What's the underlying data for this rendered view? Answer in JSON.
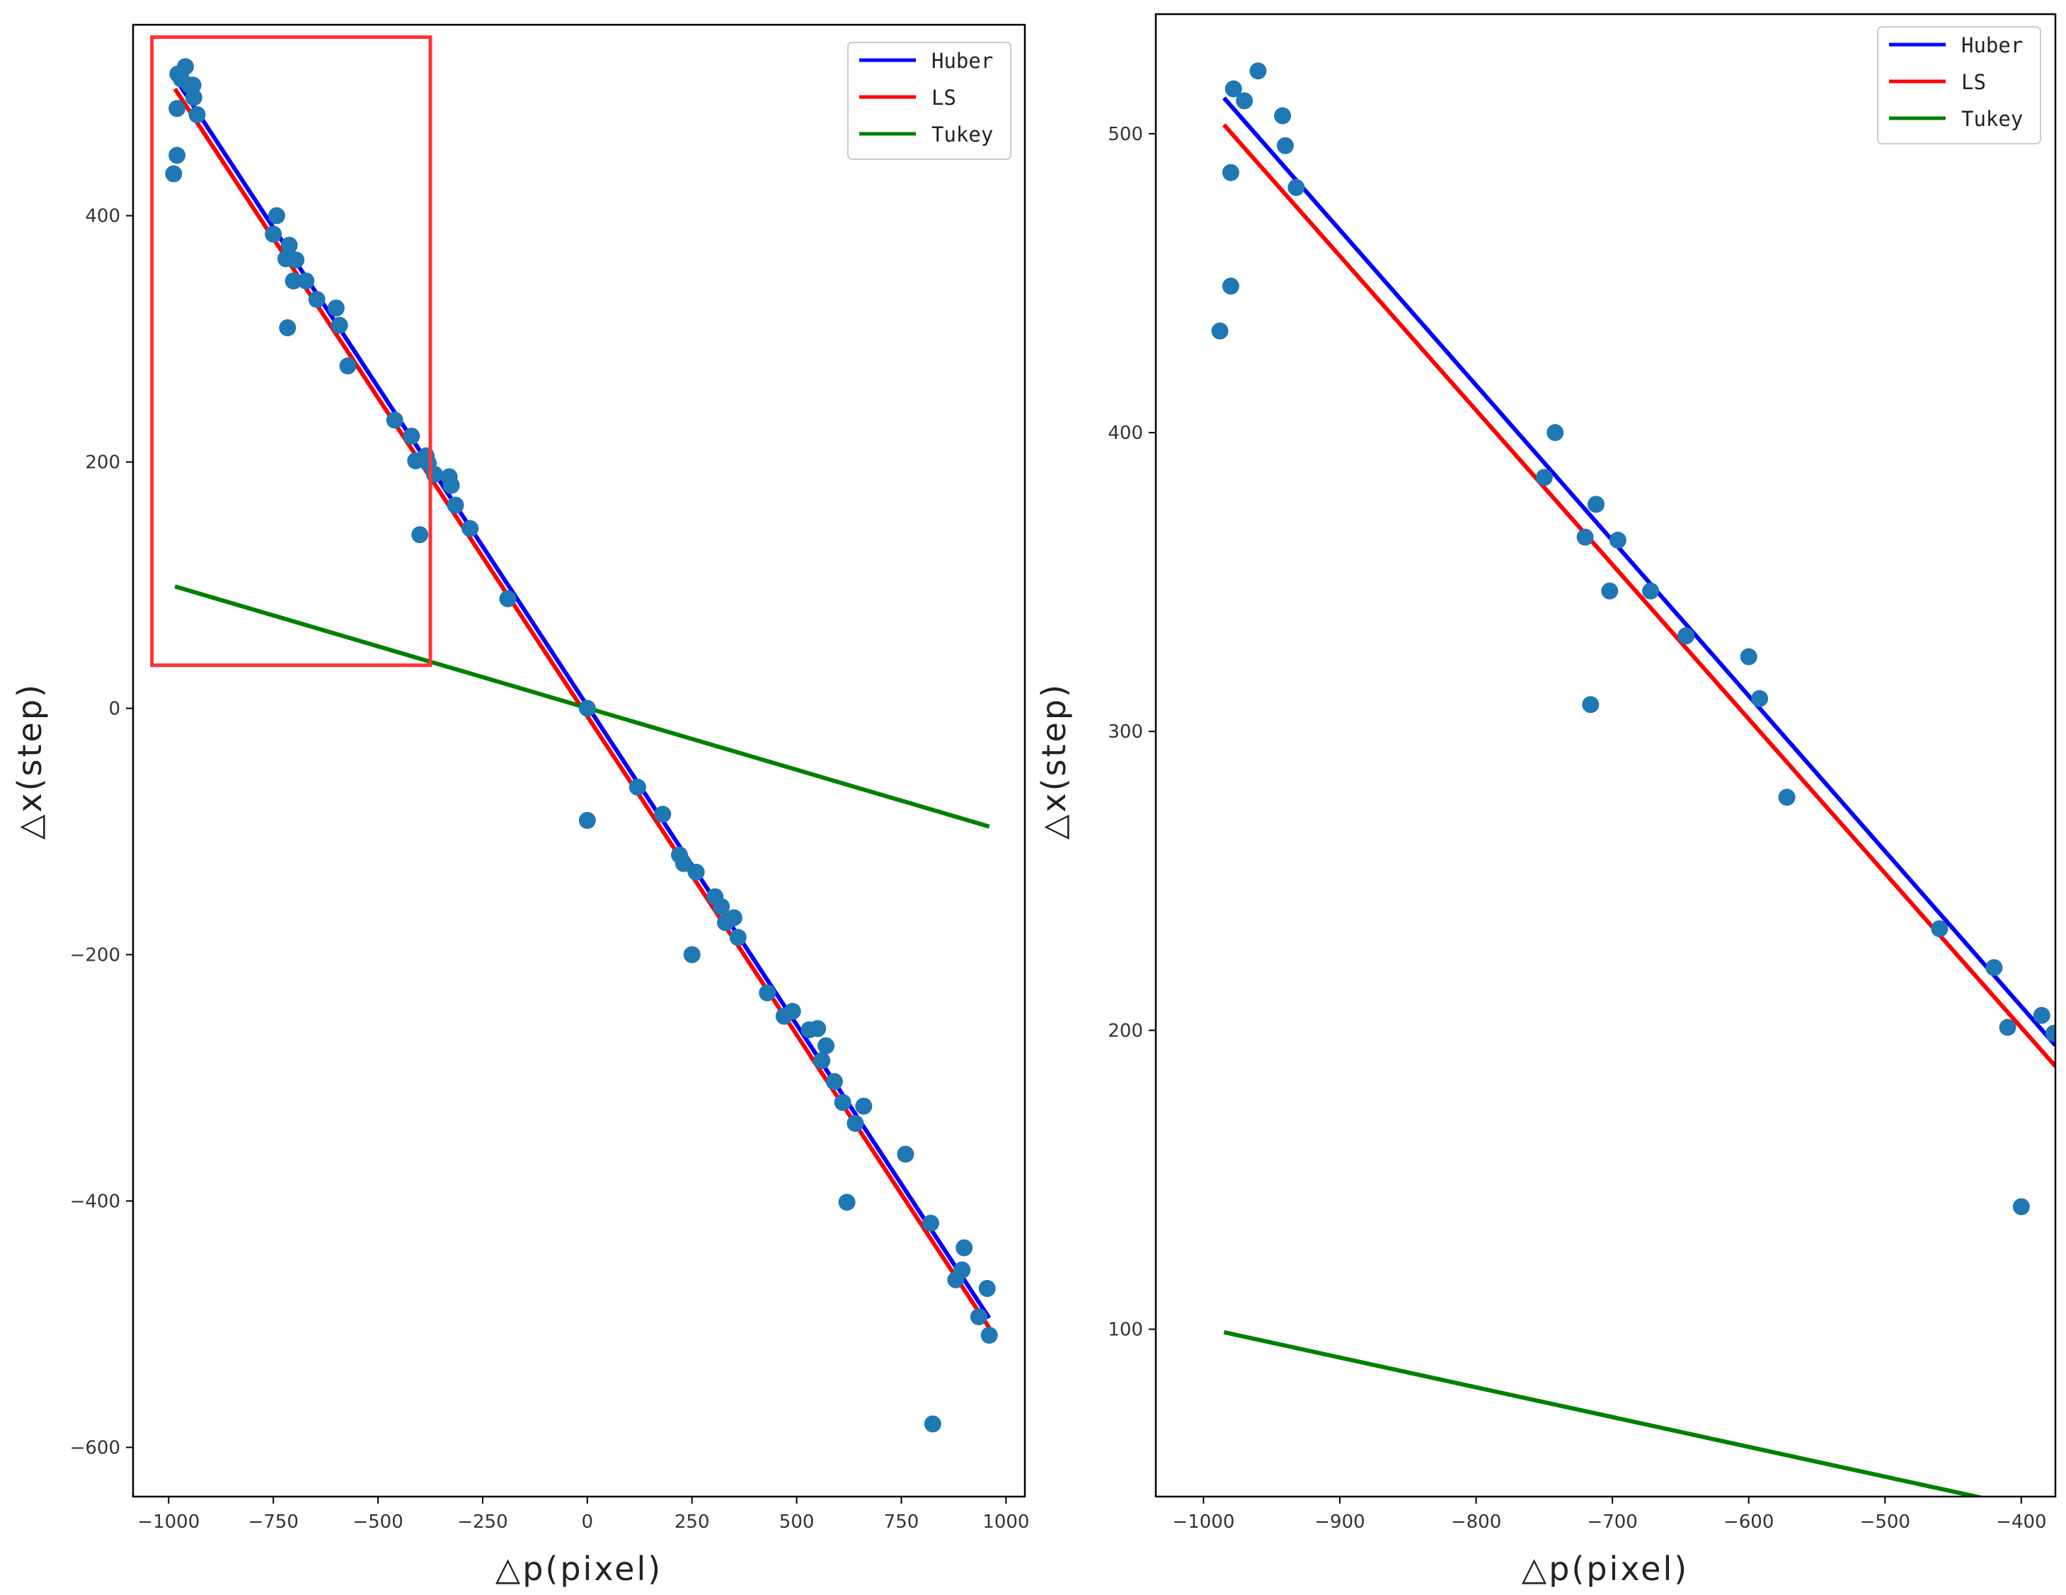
{
  "chart_data": [
    {
      "type": "scatter",
      "id": "left",
      "title": "",
      "xlabel": "△p(pixel)",
      "ylabel": "△x(step)",
      "xlim": [
        -1085,
        1045
      ],
      "ylim": [
        -640,
        555
      ],
      "xticks": [
        -1000,
        -750,
        -500,
        -250,
        0,
        250,
        500,
        750,
        1000
      ],
      "xtick_labels": [
        "−1000",
        "−750",
        "−500",
        "−250",
        "0",
        "250",
        "500",
        "750",
        "1000"
      ],
      "yticks": [
        -600,
        -400,
        -200,
        0,
        200,
        400
      ],
      "ytick_labels": [
        "−600",
        "−400",
        "−200",
        "0",
        "200",
        "400"
      ],
      "legend_position": "top-right",
      "highlight_box": {
        "x0": -1040,
        "x1": -375,
        "y0": 35,
        "y1": 545,
        "color": "#ff3333"
      },
      "lines": [
        {
          "name": "Huber",
          "color": "#0000ff",
          "x": [
            -985,
            960
          ],
          "y": [
            512,
            -495
          ]
        },
        {
          "name": "LS",
          "color": "#ff0000",
          "x": [
            -985,
            960
          ],
          "y": [
            503,
            -503
          ]
        },
        {
          "name": "Tukey",
          "color": "#008000",
          "x": [
            -985,
            960
          ],
          "y": [
            99,
            -96
          ]
        }
      ],
      "points": [
        [
          -988,
          434
        ],
        [
          -980,
          449
        ],
        [
          -980,
          487
        ],
        [
          -978,
          515
        ],
        [
          -970,
          511
        ],
        [
          -960,
          521
        ],
        [
          -950,
          506
        ],
        [
          -942,
          506
        ],
        [
          -940,
          496
        ],
        [
          -932,
          482
        ],
        [
          -750,
          385
        ],
        [
          -742,
          400
        ],
        [
          -720,
          365
        ],
        [
          -716,
          309
        ],
        [
          -712,
          376
        ],
        [
          -702,
          347
        ],
        [
          -696,
          364
        ],
        [
          -672,
          347
        ],
        [
          -646,
          332
        ],
        [
          -600,
          325
        ],
        [
          -592,
          311
        ],
        [
          -572,
          278
        ],
        [
          -460,
          234
        ],
        [
          -420,
          221
        ],
        [
          -410,
          201
        ],
        [
          -400,
          141
        ],
        [
          -385,
          205
        ],
        [
          -380,
          199
        ],
        [
          -365,
          190
        ],
        [
          -330,
          188
        ],
        [
          -325,
          181
        ],
        [
          -315,
          165
        ],
        [
          -280,
          146
        ],
        [
          -190,
          89
        ],
        [
          0,
          0
        ],
        [
          0,
          -91
        ],
        [
          120,
          -64
        ],
        [
          180,
          -86
        ],
        [
          220,
          -119
        ],
        [
          230,
          -126
        ],
        [
          250,
          -200
        ],
        [
          260,
          -133
        ],
        [
          305,
          -153
        ],
        [
          320,
          -161
        ],
        [
          330,
          -174
        ],
        [
          350,
          -170
        ],
        [
          360,
          -186
        ],
        [
          430,
          -231
        ],
        [
          470,
          -250
        ],
        [
          490,
          -246
        ],
        [
          530,
          -261
        ],
        [
          550,
          -260
        ],
        [
          560,
          -286
        ],
        [
          570,
          -274
        ],
        [
          590,
          -303
        ],
        [
          610,
          -320
        ],
        [
          620,
          -401
        ],
        [
          640,
          -337
        ],
        [
          660,
          -323
        ],
        [
          760,
          -362
        ],
        [
          820,
          -418
        ],
        [
          825,
          -581
        ],
        [
          880,
          -464
        ],
        [
          895,
          -456
        ],
        [
          900,
          -438
        ],
        [
          935,
          -494
        ],
        [
          955,
          -471
        ],
        [
          960,
          -509
        ]
      ]
    },
    {
      "type": "scatter",
      "id": "right",
      "title": "",
      "xlabel": "△p(pixel)",
      "ylabel": "△x(step)",
      "xlim": [
        -1035,
        -375
      ],
      "ylim": [
        44,
        540
      ],
      "xticks": [
        -1000,
        -900,
        -800,
        -700,
        -600,
        -500,
        -400
      ],
      "xtick_labels": [
        "−1000",
        "−900",
        "−800",
        "−700",
        "−600",
        "−500",
        "−400"
      ],
      "yticks": [
        100,
        200,
        300,
        400,
        500
      ],
      "ytick_labels": [
        "100",
        "200",
        "300",
        "400",
        "500"
      ],
      "legend_position": "top-right",
      "lines": [
        {
          "name": "Huber",
          "color": "#0000ff",
          "x": [
            -985,
            -375
          ],
          "y": [
            512,
            195
          ]
        },
        {
          "name": "LS",
          "color": "#ff0000",
          "x": [
            -985,
            -375
          ],
          "y": [
            503,
            188
          ]
        },
        {
          "name": "Tukey",
          "color": "#008000",
          "x": [
            -985,
            -423
          ],
          "y": [
            99,
            43
          ]
        }
      ],
      "points": [
        [
          -988,
          434
        ],
        [
          -980,
          449
        ],
        [
          -980,
          487
        ],
        [
          -978,
          515
        ],
        [
          -970,
          511
        ],
        [
          -960,
          521
        ],
        [
          -942,
          506
        ],
        [
          -940,
          496
        ],
        [
          -932,
          482
        ],
        [
          -750,
          385
        ],
        [
          -742,
          400
        ],
        [
          -720,
          365
        ],
        [
          -716,
          309
        ],
        [
          -712,
          376
        ],
        [
          -702,
          347
        ],
        [
          -696,
          364
        ],
        [
          -672,
          347
        ],
        [
          -646,
          332
        ],
        [
          -600,
          325
        ],
        [
          -592,
          311
        ],
        [
          -572,
          278
        ],
        [
          -460,
          234
        ],
        [
          -420,
          221
        ],
        [
          -410,
          201
        ],
        [
          -400,
          141
        ],
        [
          -385,
          205
        ],
        [
          -376,
          199
        ]
      ]
    }
  ],
  "legend": [
    {
      "label": "Huber",
      "color": "#0000ff"
    },
    {
      "label": "LS",
      "color": "#ff0000"
    },
    {
      "label": "Tukey",
      "color": "#008000"
    }
  ],
  "point_color": "#1f77b4"
}
